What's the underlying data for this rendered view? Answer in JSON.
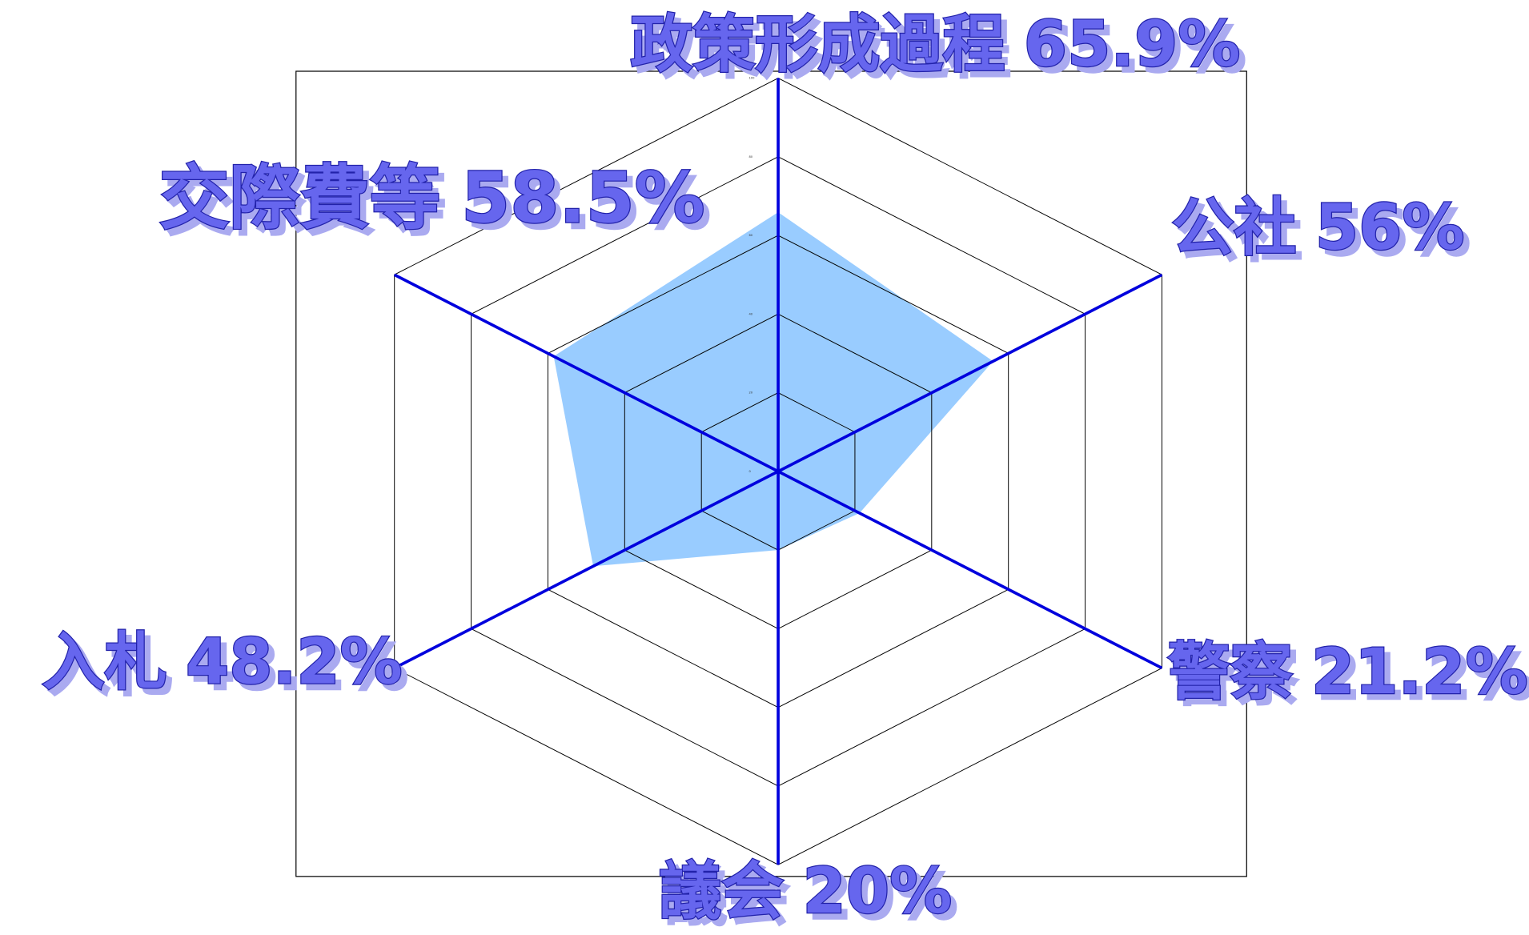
{
  "chart_data": {
    "type": "radar",
    "categories": [
      "政策形成過程",
      "公社",
      "警察",
      "議会",
      "入札",
      "交際費等"
    ],
    "values": [
      65.9,
      56,
      21.2,
      20,
      48.2,
      58.5
    ],
    "value_labels": [
      "65.9%",
      "56%",
      "21.2%",
      "20%",
      "48.2%",
      "58.5%"
    ],
    "color": "#99ccff",
    "axis_color": "#0000dd",
    "label_color": "#6666ee",
    "ylim": [
      0,
      100
    ],
    "yticks": [
      0,
      20,
      40,
      60,
      80,
      100
    ],
    "grid": true
  }
}
